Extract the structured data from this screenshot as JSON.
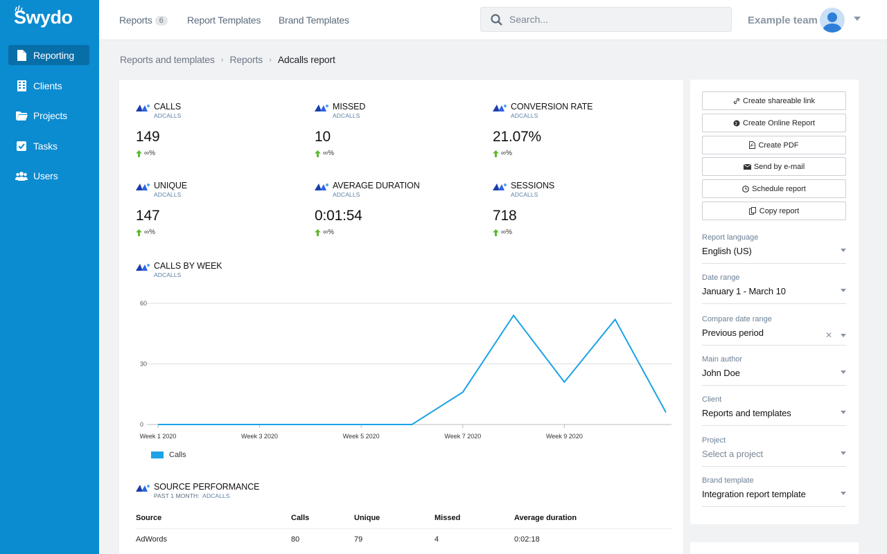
{
  "app": {
    "logo": "Swydo"
  },
  "sidebar": {
    "items": [
      {
        "label": "Reporting",
        "icon": "file-icon"
      },
      {
        "label": "Clients",
        "icon": "building-icon"
      },
      {
        "label": "Projects",
        "icon": "folder-icon"
      },
      {
        "label": "Tasks",
        "icon": "check-square-icon"
      },
      {
        "label": "Users",
        "icon": "users-icon"
      }
    ]
  },
  "topbar": {
    "tabs": [
      {
        "label": "Reports",
        "badge": "6"
      },
      {
        "label": "Report Templates"
      },
      {
        "label": "Brand Templates"
      }
    ],
    "search_placeholder": "Search...",
    "team": "Example team"
  },
  "breadcrumb": {
    "items": [
      "Reports and templates",
      "Reports"
    ],
    "current": "Adcalls report"
  },
  "metrics": [
    {
      "title": "CALLS",
      "source": "ADCALLS",
      "value": "149",
      "delta": "∞%"
    },
    {
      "title": "MISSED",
      "source": "ADCALLS",
      "value": "10",
      "delta": "∞%"
    },
    {
      "title": "CONVERSION RATE",
      "source": "ADCALLS",
      "value": "21.07%",
      "delta": "∞%"
    },
    {
      "title": "UNIQUE",
      "source": "ADCALLS",
      "value": "147",
      "delta": "∞%"
    },
    {
      "title": "AVERAGE DURATION",
      "source": "ADCALLS",
      "value": "0:01:54",
      "delta": "∞%"
    },
    {
      "title": "SESSIONS",
      "source": "ADCALLS",
      "value": "718",
      "delta": "∞%"
    }
  ],
  "chart_section": {
    "title": "CALLS BY WEEK",
    "source": "ADCALLS"
  },
  "chart_data": {
    "type": "line",
    "title": "CALLS BY WEEK",
    "x_tick_labels": [
      "Week 1 2020",
      "Week 3 2020",
      "Week 5 2020",
      "Week 7 2020",
      "Week 9 2020"
    ],
    "y_ticks": [
      0,
      30,
      60
    ],
    "ylim": [
      0,
      60
    ],
    "x": [
      1,
      2,
      3,
      4,
      5,
      6,
      7,
      8,
      9,
      10,
      11
    ],
    "series": [
      {
        "name": "Calls",
        "color": "#1ca2e5",
        "values": [
          0,
          0,
          0,
          0,
          0,
          0,
          16,
          54,
          21,
          52,
          6
        ]
      }
    ],
    "legend": "bottom-left",
    "grid": true
  },
  "table_section": {
    "title": "SOURCE PERFORMANCE",
    "subtitle": "PAST 1 MONTH:",
    "source": "ADCALLS"
  },
  "table": {
    "columns": [
      "Source",
      "Calls",
      "Unique",
      "Missed",
      "Average duration"
    ],
    "rows": [
      [
        "AdWords",
        "80",
        "79",
        "4",
        "0:02:18"
      ]
    ]
  },
  "actions": [
    {
      "label": "Create shareable link",
      "icon": "link-icon"
    },
    {
      "label": "Create Online Report",
      "icon": "globe-icon"
    },
    {
      "label": "Create PDF",
      "icon": "pdf-icon"
    },
    {
      "label": "Send by e-mail",
      "icon": "envelope-icon"
    },
    {
      "label": "Schedule report",
      "icon": "clock-icon"
    },
    {
      "label": "Copy report",
      "icon": "copy-icon"
    }
  ],
  "settings": [
    {
      "label": "Report language",
      "value": "English (US)"
    },
    {
      "label": "Date range",
      "value": "January 1 - March 10"
    },
    {
      "label": "Compare date range",
      "value": "Previous period",
      "clearable": true
    },
    {
      "label": "Main author",
      "value": "John Doe"
    },
    {
      "label": "Client",
      "value": "Reports and templates"
    },
    {
      "label": "Project",
      "value": "Select a project",
      "placeholder": true
    },
    {
      "label": "Brand template",
      "value": "Integration report template"
    }
  ],
  "colors": {
    "sidebar": "#0b8bd0",
    "sidebar_active": "#086ea8",
    "accent": "#1ca2e5",
    "up_arrow": "#5cb82e"
  }
}
